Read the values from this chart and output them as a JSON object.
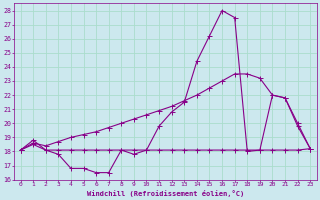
{
  "xlabel": "Windchill (Refroidissement éolien,°C)",
  "bg_color": "#cce8ee",
  "line_color": "#880088",
  "grid_color": "#aaddcc",
  "ylim": [
    16,
    28.5
  ],
  "xlim": [
    -0.5,
    23.5
  ],
  "yticks": [
    16,
    17,
    18,
    19,
    20,
    21,
    22,
    23,
    24,
    25,
    26,
    27,
    28
  ],
  "xticks": [
    0,
    1,
    2,
    3,
    4,
    5,
    6,
    7,
    8,
    9,
    10,
    11,
    12,
    13,
    14,
    15,
    16,
    17,
    18,
    19,
    20,
    21,
    22,
    23
  ],
  "line1_x": [
    0,
    1,
    2,
    3,
    4,
    5,
    6,
    7,
    8,
    9,
    10,
    11,
    12,
    13,
    14,
    15,
    16,
    17,
    18,
    19,
    20,
    21,
    22,
    23
  ],
  "line1_y": [
    18.1,
    18.8,
    18.1,
    17.8,
    16.8,
    16.8,
    16.5,
    16.5,
    18.1,
    17.8,
    18.1,
    19.8,
    20.8,
    21.5,
    24.4,
    26.2,
    28.0,
    27.5,
    18.0,
    18.1,
    22.0,
    21.8,
    19.8,
    18.2
  ],
  "line2_x": [
    0,
    1,
    2,
    3,
    4,
    5,
    6,
    7,
    8,
    9,
    10,
    11,
    12,
    13,
    14,
    15,
    16,
    17,
    18,
    19,
    20,
    21,
    22,
    23
  ],
  "line2_y": [
    18.1,
    18.5,
    18.1,
    18.1,
    18.1,
    18.1,
    18.1,
    18.1,
    18.1,
    18.1,
    18.1,
    18.1,
    18.1,
    18.1,
    18.1,
    18.1,
    18.1,
    18.1,
    18.1,
    18.1,
    18.1,
    18.1,
    18.1,
    18.2
  ],
  "line3_x": [
    0,
    1,
    2,
    3,
    4,
    5,
    6,
    7,
    8,
    9,
    10,
    11,
    12,
    13,
    14,
    15,
    16,
    17,
    18,
    19,
    20,
    21,
    22,
    23
  ],
  "line3_y": [
    18.1,
    18.6,
    18.4,
    18.7,
    19.0,
    19.2,
    19.4,
    19.7,
    20.0,
    20.3,
    20.6,
    20.9,
    21.2,
    21.6,
    22.0,
    22.5,
    23.0,
    23.5,
    23.5,
    23.2,
    22.0,
    21.8,
    20.0,
    18.2
  ],
  "marker_size": 2.0,
  "line_width": 0.8,
  "tick_fontsize": 4.5,
  "label_fontsize": 5.0
}
